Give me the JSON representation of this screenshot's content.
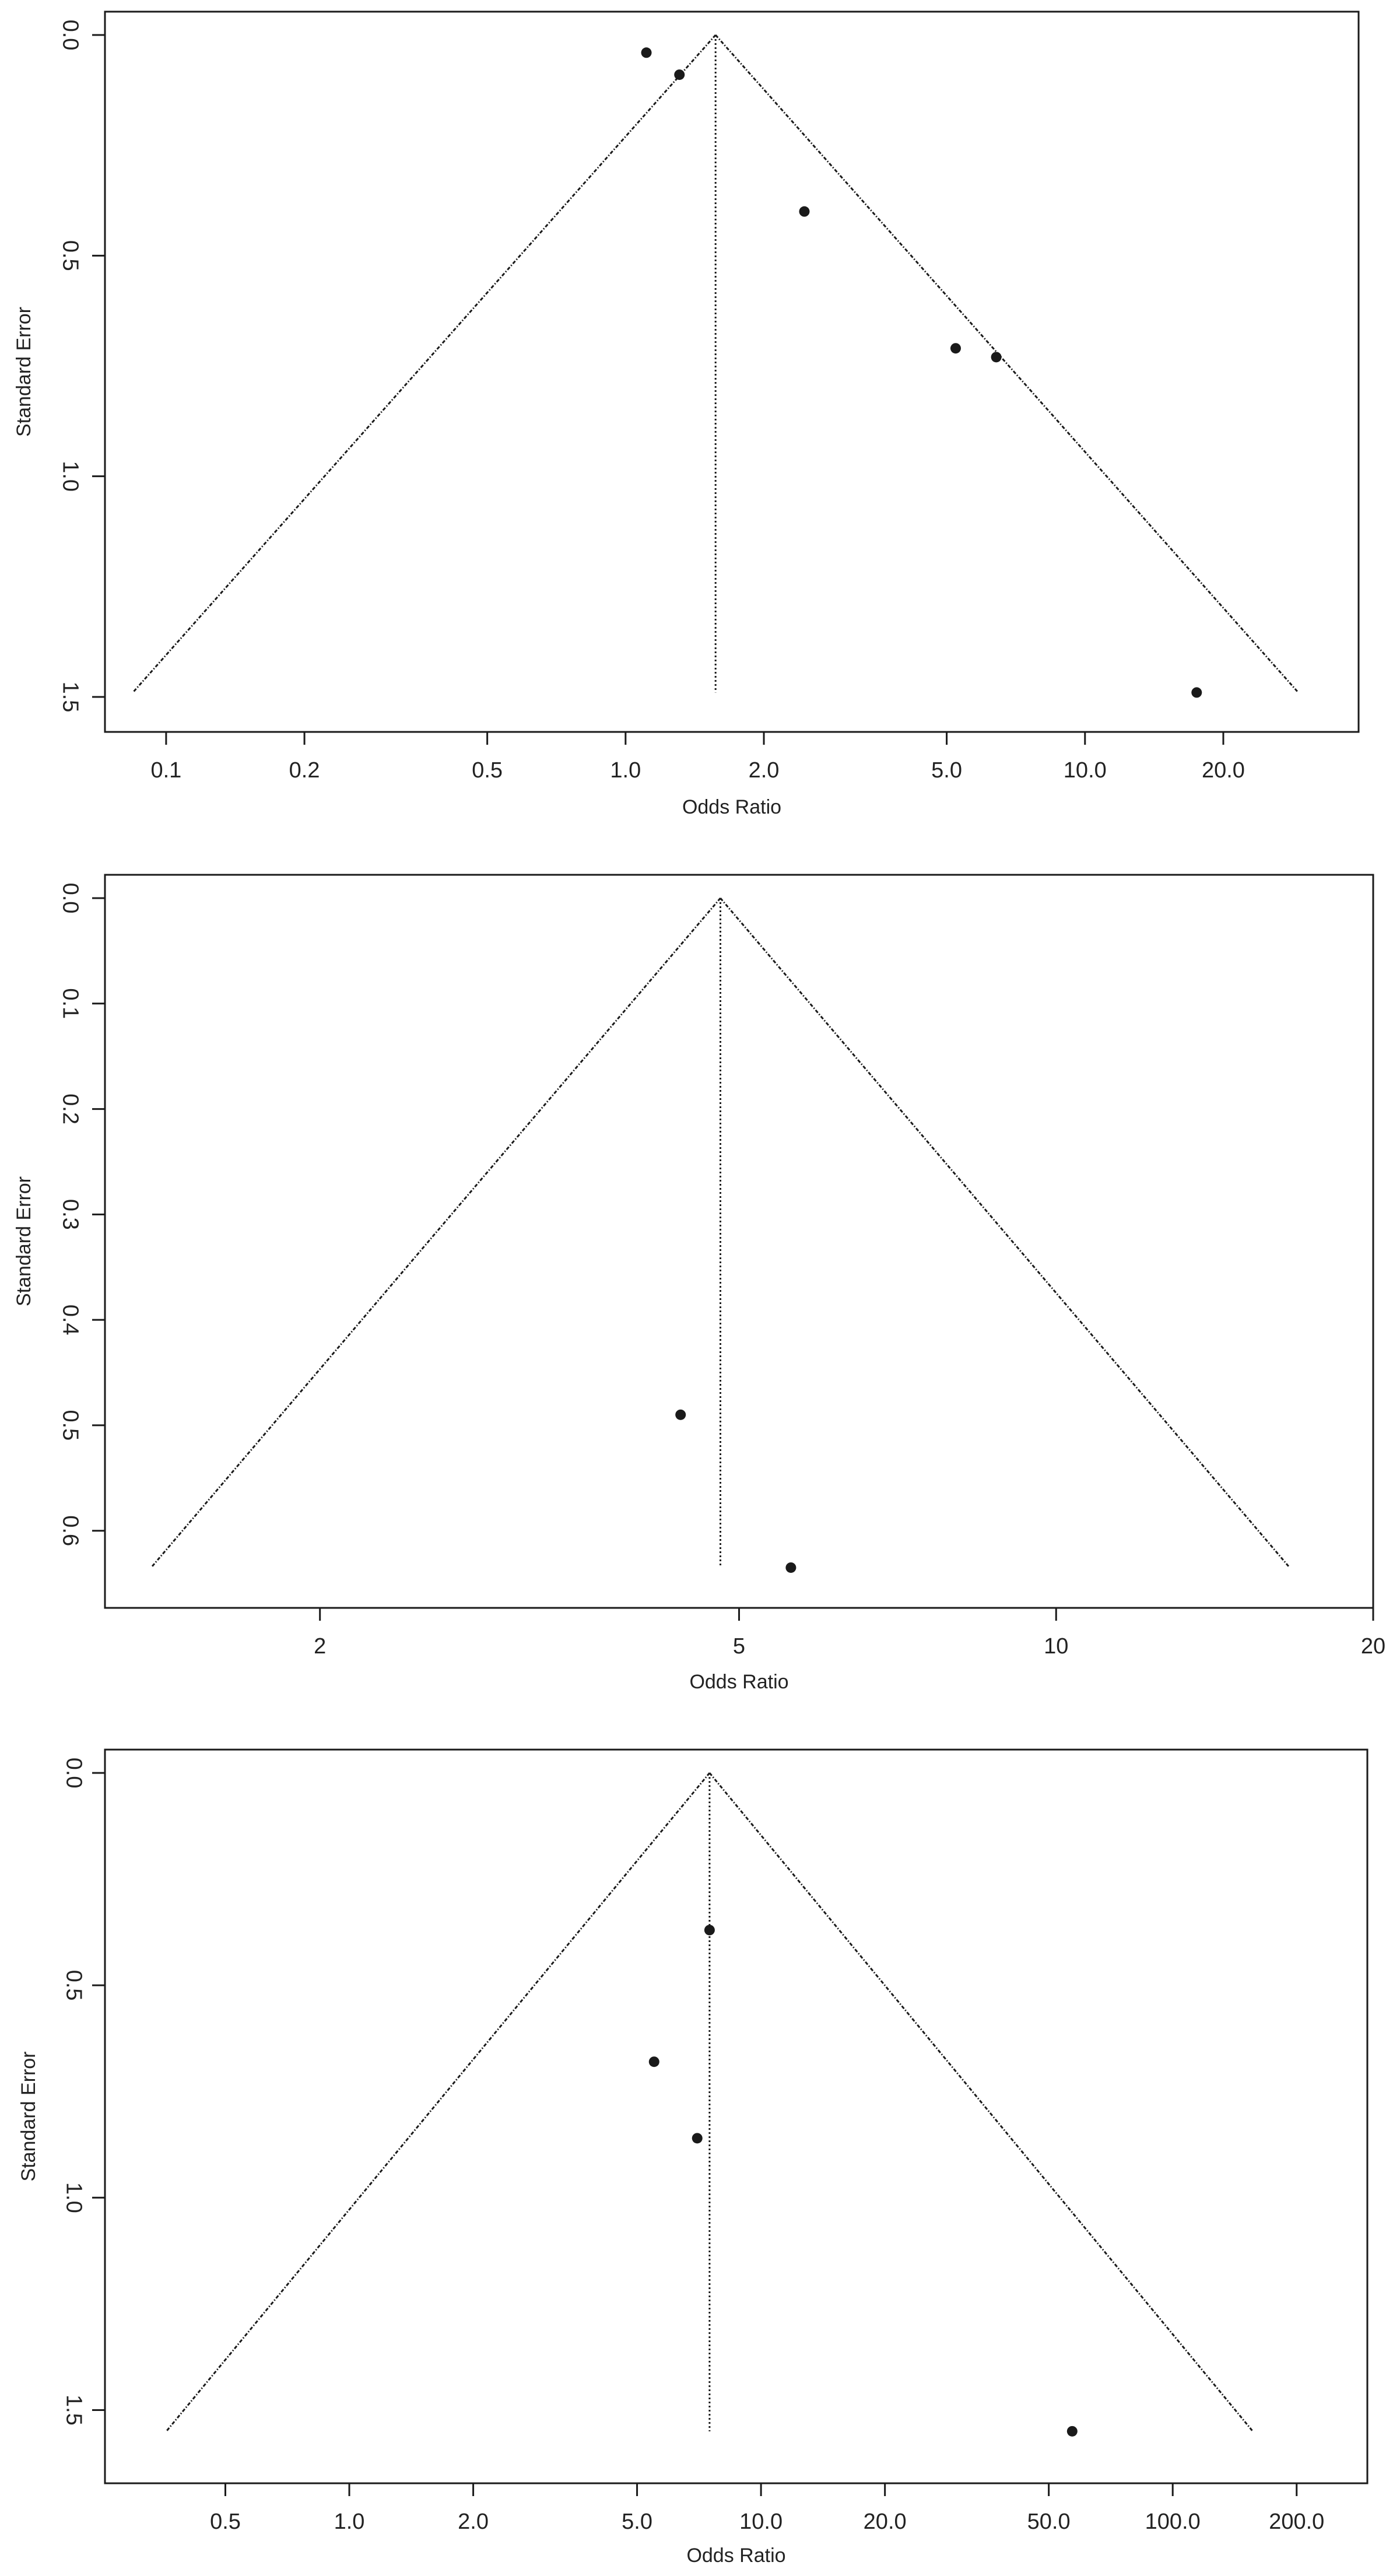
{
  "colors": {
    "background": "#ffffff",
    "ink": "#1a1a1a"
  },
  "chart_data": [
    {
      "type": "scatter",
      "subtype": "funnel-plot",
      "xlabel": "Odds Ratio",
      "ylabel": "Standard Error",
      "x_scale": "log",
      "y_inverted": true,
      "grid": false,
      "xlim": [
        0.0736,
        39.4
      ],
      "ylim": [
        0.0,
        1.5
      ],
      "x_ticks": [
        {
          "value": 0.1,
          "label": "0.1"
        },
        {
          "value": 0.2,
          "label": "0.2"
        },
        {
          "value": 0.5,
          "label": "0.5"
        },
        {
          "value": 1.0,
          "label": "1.0"
        },
        {
          "value": 2.0,
          "label": "2.0"
        },
        {
          "value": 5.0,
          "label": "5.0"
        },
        {
          "value": 10.0,
          "label": "10.0"
        },
        {
          "value": 20.0,
          "label": "20.0"
        }
      ],
      "y_ticks": [
        {
          "value": 0.0,
          "label": "0.0"
        },
        {
          "value": 0.5,
          "label": "0.5"
        },
        {
          "value": 1.0,
          "label": "1.0"
        },
        {
          "value": 1.5,
          "label": "1.5"
        }
      ],
      "pooled_or": 1.57,
      "funnel_max_se": 1.49,
      "points": [
        {
          "or": 1.11,
          "se": 0.04
        },
        {
          "or": 1.31,
          "se": 0.09
        },
        {
          "or": 2.45,
          "se": 0.4
        },
        {
          "or": 5.23,
          "se": 0.71
        },
        {
          "or": 6.41,
          "se": 0.73
        },
        {
          "or": 17.5,
          "se": 1.49
        }
      ]
    },
    {
      "type": "scatter",
      "subtype": "funnel-plot",
      "xlabel": "Odds Ratio",
      "ylabel": "Standard Error",
      "x_scale": "log",
      "y_inverted": true,
      "grid": false,
      "xlim": [
        1.25,
        20.0
      ],
      "ylim": [
        0.0,
        0.64
      ],
      "x_ticks": [
        {
          "value": 2,
          "label": "2"
        },
        {
          "value": 5,
          "label": "5"
        },
        {
          "value": 10,
          "label": "10"
        },
        {
          "value": 20,
          "label": "20"
        }
      ],
      "y_ticks": [
        {
          "value": 0.0,
          "label": "0.0"
        },
        {
          "value": 0.1,
          "label": "0.1"
        },
        {
          "value": 0.2,
          "label": "0.2"
        },
        {
          "value": 0.3,
          "label": "0.3"
        },
        {
          "value": 0.4,
          "label": "0.4"
        },
        {
          "value": 0.5,
          "label": "0.5"
        },
        {
          "value": 0.6,
          "label": "0.6"
        }
      ],
      "pooled_or": 4.8,
      "funnel_max_se": 0.635,
      "points": [
        {
          "or": 4.4,
          "se": 0.49
        },
        {
          "or": 5.6,
          "se": 0.635
        }
      ]
    },
    {
      "type": "scatter",
      "subtype": "funnel-plot",
      "xlabel": "Odds Ratio",
      "ylabel": "Standard Error",
      "x_scale": "log",
      "y_inverted": true,
      "grid": false,
      "xlim": [
        0.255,
        297.0
      ],
      "ylim": [
        0.0,
        1.59
      ],
      "x_ticks": [
        {
          "value": 0.5,
          "label": "0.5"
        },
        {
          "value": 1.0,
          "label": "1.0"
        },
        {
          "value": 2.0,
          "label": "2.0"
        },
        {
          "value": 5.0,
          "label": "5.0"
        },
        {
          "value": 10.0,
          "label": "10.0"
        },
        {
          "value": 20.0,
          "label": "20.0"
        },
        {
          "value": 50.0,
          "label": "50.0"
        },
        {
          "value": 100.0,
          "label": "100.0"
        },
        {
          "value": 200.0,
          "label": "200.0"
        }
      ],
      "y_ticks": [
        {
          "value": 0.0,
          "label": "0.0"
        },
        {
          "value": 0.5,
          "label": "0.5"
        },
        {
          "value": 1.0,
          "label": "1.0"
        },
        {
          "value": 1.5,
          "label": "1.5"
        }
      ],
      "pooled_or": 7.5,
      "funnel_max_se": 1.55,
      "points": [
        {
          "or": 7.5,
          "se": 0.37
        },
        {
          "or": 5.5,
          "se": 0.68
        },
        {
          "or": 7.0,
          "se": 0.86
        },
        {
          "or": 57.0,
          "se": 1.55
        }
      ]
    }
  ]
}
